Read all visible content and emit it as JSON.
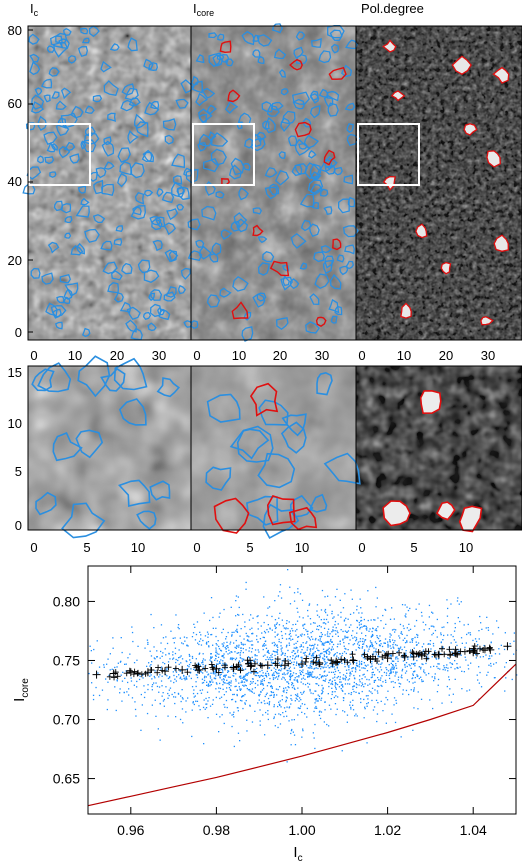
{
  "panels": {
    "titles": [
      {
        "main": "I",
        "sub": "c"
      },
      {
        "main": "I",
        "sub": "core"
      },
      {
        "main": "Pol.degree",
        "sub": ""
      }
    ],
    "top_y_ticks": [
      "0",
      "20",
      "40",
      "60",
      "80"
    ],
    "top_x_ticks": [
      "0",
      "10",
      "20",
      "30"
    ],
    "zoom_y_ticks": [
      "0",
      "5",
      "10",
      "15"
    ],
    "zoom_x_ticks": [
      "0",
      "5",
      "10"
    ]
  },
  "chart_data": {
    "type": "scatter",
    "xlabel": {
      "main": "I",
      "sub": "c"
    },
    "ylabel": {
      "main": "I",
      "sub": "core"
    },
    "xlim": [
      0.95,
      1.05
    ],
    "ylim": [
      0.62,
      0.83
    ],
    "x_ticks": [
      "0.96",
      "0.98",
      "1.00",
      "1.02",
      "1.04"
    ],
    "y_ticks": [
      "0.65",
      "0.70",
      "0.75",
      "0.80"
    ],
    "x_tick_values": [
      0.96,
      0.98,
      1.0,
      1.02,
      1.04
    ],
    "y_tick_values": [
      0.65,
      0.7,
      0.75,
      0.8
    ],
    "scatter_cloud": {
      "x_center": 1.0,
      "y_center": 0.748,
      "y_spread": 0.016,
      "n_points": 2600
    },
    "binned_means": {
      "x": [
        0.952,
        0.956,
        0.96,
        0.964,
        0.968,
        0.972,
        0.976,
        0.98,
        0.984,
        0.988,
        0.992,
        0.996,
        1.0,
        1.004,
        1.008,
        1.012,
        1.016,
        1.02,
        1.024,
        1.028,
        1.032,
        1.036,
        1.04,
        1.044,
        1.048
      ],
      "y": [
        0.738,
        0.739,
        0.74,
        0.74,
        0.741,
        0.742,
        0.742,
        0.743,
        0.744,
        0.745,
        0.746,
        0.746,
        0.747,
        0.748,
        0.749,
        0.75,
        0.751,
        0.752,
        0.753,
        0.754,
        0.755,
        0.756,
        0.757,
        0.759,
        0.762
      ]
    },
    "model_curve": {
      "x": [
        0.95,
        0.96,
        0.97,
        0.98,
        0.99,
        1.0,
        1.01,
        1.02,
        1.03,
        1.04,
        1.05
      ],
      "y": [
        0.627,
        0.635,
        0.643,
        0.651,
        0.66,
        0.669,
        0.679,
        0.689,
        0.7,
        0.712,
        0.747
      ]
    },
    "colors": {
      "points": "#1e90ff",
      "means": "#000000",
      "curve": "#b30000"
    }
  },
  "colors": {
    "contour_blue": "#2b8fe0",
    "contour_red": "#e01010",
    "box": "#ffffff"
  }
}
